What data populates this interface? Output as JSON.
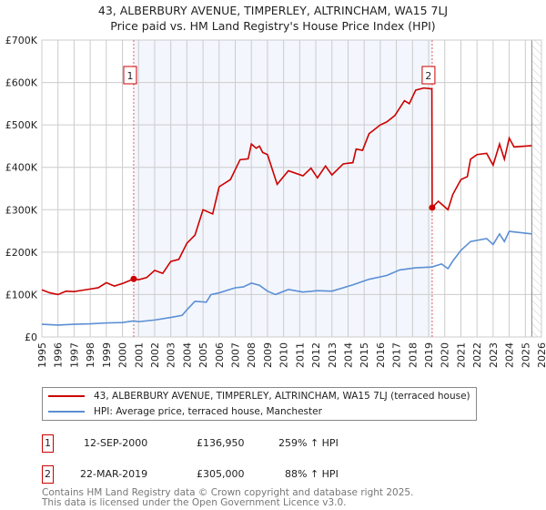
{
  "chart_data": {
    "type": "line",
    "title": "43, ALBERBURY AVENUE, TIMPERLEY, ALTRINCHAM, WA15 7LJ",
    "subtitle": "Price paid vs. HM Land Registry's House Price Index (HPI)",
    "xlim": [
      1995,
      2026
    ],
    "ylim": [
      0,
      700000
    ],
    "yticks": [
      0,
      100000,
      200000,
      300000,
      400000,
      500000,
      600000,
      700000
    ],
    "ytick_labels": [
      "£0",
      "£100K",
      "£200K",
      "£300K",
      "£400K",
      "£500K",
      "£600K",
      "£700K"
    ],
    "xticks": [
      1995,
      1996,
      1997,
      1998,
      1999,
      2000,
      2001,
      2002,
      2003,
      2004,
      2005,
      2006,
      2007,
      2008,
      2009,
      2010,
      2011,
      2012,
      2013,
      2014,
      2015,
      2016,
      2017,
      2018,
      2019,
      2020,
      2021,
      2022,
      2023,
      2024,
      2025,
      2026
    ],
    "grid": true,
    "ownership_shaded": [
      2000.7,
      2019.22
    ],
    "forecast_hatched_from": 2025.4,
    "series": [
      {
        "name": "43, ALBERBURY AVENUE, TIMPERLEY, ALTRINCHAM, WA15 7LJ (terraced house)",
        "color": "#cc0000",
        "points": [
          [
            1995,
            111000
          ],
          [
            1995.5,
            104000
          ],
          [
            1996,
            100000
          ],
          [
            1996.5,
            108000
          ],
          [
            1997,
            107000
          ],
          [
            1997.5,
            110000
          ],
          [
            1998,
            113000
          ],
          [
            1998.5,
            116000
          ],
          [
            1999,
            128000
          ],
          [
            1999.5,
            120000
          ],
          [
            2000,
            126000
          ],
          [
            2000.7,
            136950
          ],
          [
            2001,
            135000
          ],
          [
            2001.5,
            140000
          ],
          [
            2002,
            157000
          ],
          [
            2002.5,
            150000
          ],
          [
            2003,
            178000
          ],
          [
            2003.5,
            183000
          ],
          [
            2004,
            221000
          ],
          [
            2004.5,
            240000
          ],
          [
            2005,
            300000
          ],
          [
            2005.6,
            290000
          ],
          [
            2006,
            354000
          ],
          [
            2006.7,
            371000
          ],
          [
            2007.3,
            418000
          ],
          [
            2007.8,
            420000
          ],
          [
            2008,
            455000
          ],
          [
            2008.3,
            445000
          ],
          [
            2008.5,
            450000
          ],
          [
            2008.7,
            435000
          ],
          [
            2009,
            430000
          ],
          [
            2009.6,
            360000
          ],
          [
            2010.3,
            392000
          ],
          [
            2011.2,
            380000
          ],
          [
            2011.7,
            398000
          ],
          [
            2012.1,
            375000
          ],
          [
            2012.6,
            403000
          ],
          [
            2013,
            382000
          ],
          [
            2013.7,
            408000
          ],
          [
            2014.3,
            411000
          ],
          [
            2014.5,
            443000
          ],
          [
            2014.9,
            440000
          ],
          [
            2015.3,
            479000
          ],
          [
            2016,
            500000
          ],
          [
            2016.4,
            507000
          ],
          [
            2016.9,
            522000
          ],
          [
            2017.5,
            557000
          ],
          [
            2017.8,
            550000
          ],
          [
            2018.2,
            582000
          ],
          [
            2018.7,
            587000
          ],
          [
            2019.2,
            585000
          ],
          [
            2019.22,
            305000
          ],
          [
            2019.6,
            320000
          ],
          [
            2020.2,
            300000
          ],
          [
            2020.5,
            336000
          ],
          [
            2021,
            371000
          ],
          [
            2021.4,
            378000
          ],
          [
            2021.6,
            419000
          ],
          [
            2022,
            430000
          ],
          [
            2022.6,
            433000
          ],
          [
            2023,
            405000
          ],
          [
            2023.4,
            455000
          ],
          [
            2023.7,
            419000
          ],
          [
            2024,
            469000
          ],
          [
            2024.3,
            448000
          ],
          [
            2025.4,
            451000
          ]
        ]
      },
      {
        "name": "HPI: Average price, terraced house, Manchester",
        "color": "#5b8fd4",
        "points": [
          [
            1995,
            30000
          ],
          [
            1996,
            28000
          ],
          [
            1997,
            30000
          ],
          [
            1998,
            31000
          ],
          [
            1999,
            33000
          ],
          [
            2000,
            34000
          ],
          [
            2000.7,
            38000
          ],
          [
            2001,
            36000
          ],
          [
            2002,
            40000
          ],
          [
            2003,
            46000
          ],
          [
            2003.7,
            51000
          ],
          [
            2004,
            64000
          ],
          [
            2004.5,
            84000
          ],
          [
            2005.2,
            82000
          ],
          [
            2005.5,
            100000
          ],
          [
            2006,
            104000
          ],
          [
            2007,
            116000
          ],
          [
            2007.5,
            118000
          ],
          [
            2008,
            127000
          ],
          [
            2008.5,
            122000
          ],
          [
            2009,
            108000
          ],
          [
            2009.5,
            100000
          ],
          [
            2010.3,
            112000
          ],
          [
            2011.2,
            106000
          ],
          [
            2012.1,
            109000
          ],
          [
            2013,
            108000
          ],
          [
            2013.7,
            116000
          ],
          [
            2014.3,
            123000
          ],
          [
            2015.3,
            136000
          ],
          [
            2016.4,
            145000
          ],
          [
            2017.2,
            158000
          ],
          [
            2018.2,
            163000
          ],
          [
            2019.2,
            165000
          ],
          [
            2019.8,
            172000
          ],
          [
            2020.2,
            161000
          ],
          [
            2020.5,
            179000
          ],
          [
            2021,
            204000
          ],
          [
            2021.6,
            225000
          ],
          [
            2022.6,
            232000
          ],
          [
            2023,
            218000
          ],
          [
            2023.4,
            243000
          ],
          [
            2023.7,
            225000
          ],
          [
            2024,
            249000
          ],
          [
            2025.4,
            243000
          ]
        ]
      }
    ],
    "sales": [
      {
        "label": "1",
        "year": 2000.7,
        "price": 136950,
        "date": "12-SEP-2000",
        "price_text": "£136,950",
        "hpi_text": "259% ↑ HPI"
      },
      {
        "label": "2",
        "year": 2019.22,
        "price": 305000,
        "date": "22-MAR-2019",
        "price_text": "£305,000",
        "hpi_text": "88% ↑ HPI"
      }
    ]
  },
  "legend": {
    "property": "43, ALBERBURY AVENUE, TIMPERLEY, ALTRINCHAM, WA15 7LJ (terraced house)",
    "hpi": "HPI: Average price, terraced house, Manchester"
  },
  "footer": {
    "line1": "Contains HM Land Registry data © Crown copyright and database right 2025.",
    "line2": "This data is licensed under the Open Government Licence v3.0."
  }
}
